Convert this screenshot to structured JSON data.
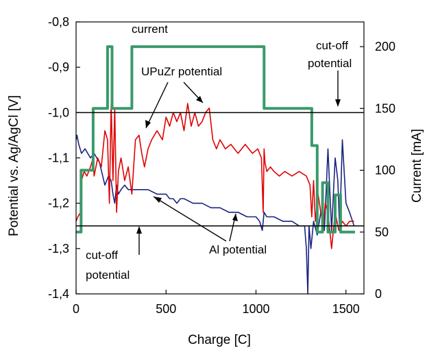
{
  "chart_data": {
    "type": "line",
    "xlabel": "Charge [C]",
    "ylabel_left": "Potential vs. Ag/AgCl [V]",
    "ylabel_right": "Current [mA]",
    "xlim": [
      0,
      1600
    ],
    "ylim_left": [
      -1.4,
      -0.8
    ],
    "ylim_right": [
      0,
      220
    ],
    "x_ticks": [
      0,
      500,
      1000,
      1500
    ],
    "x_tick_labels": [
      "0",
      "500",
      "1000",
      "1500"
    ],
    "y_left_ticks": [
      -0.8,
      -0.9,
      -1.0,
      -1.1,
      -1.2,
      -1.3,
      -1.4
    ],
    "y_left_tick_labels": [
      "-0,8",
      "-0,9",
      "-1,0",
      "-1,1",
      "-1,2",
      "-1,3",
      "-1,4"
    ],
    "y_right_ticks": [
      0,
      50,
      100,
      150,
      200
    ],
    "y_right_tick_labels": [
      "0",
      "50",
      "100",
      "150",
      "200"
    ],
    "grid": false,
    "reference_lines": [
      {
        "label": "cut-off potential upper",
        "y": -1.0
      },
      {
        "label": "cut-off potential lower",
        "y": -1.25
      }
    ],
    "annotations": {
      "current": "current",
      "upuzr": "UPuZr potential",
      "al": "Al potential",
      "cutoff_top_1": "cut-off",
      "cutoff_top_2": "potential",
      "cutoff_bottom_1": "cut-off",
      "cutoff_bottom_2": "potential"
    },
    "series": [
      {
        "axis": "right",
        "color": "#3a9a6a",
        "x": [
          0,
          28,
          28,
          95,
          95,
          175,
          175,
          200,
          200,
          235,
          235,
          310,
          310,
          1045,
          1045,
          1310,
          1310,
          1340,
          1340,
          1370,
          1370,
          1400,
          1400,
          1440,
          1440,
          1470,
          1470,
          1550
        ],
        "values": [
          50,
          50,
          100,
          100,
          150,
          150,
          200,
          200,
          150,
          150,
          150,
          150,
          200,
          200,
          150,
          150,
          120,
          120,
          50,
          50,
          90,
          90,
          50,
          50,
          80,
          80,
          50,
          50
        ]
      },
      {
        "axis": "left",
        "color": "#e00000",
        "x": [
          0,
          10,
          25,
          30,
          45,
          60,
          80,
          95,
          100,
          120,
          140,
          160,
          175,
          185,
          195,
          205,
          215,
          225,
          235,
          250,
          270,
          290,
          310,
          330,
          350,
          365,
          380,
          400,
          420,
          450,
          480,
          500,
          520,
          540,
          560,
          580,
          600,
          620,
          640,
          660,
          680,
          700,
          720,
          740,
          760,
          780,
          800,
          830,
          860,
          900,
          940,
          980,
          1010,
          1030,
          1040,
          1045,
          1050,
          1060,
          1080,
          1100,
          1130,
          1160,
          1200,
          1240,
          1280,
          1300,
          1310,
          1320,
          1330,
          1345,
          1360,
          1375,
          1385,
          1400,
          1420,
          1440,
          1460,
          1480,
          1500,
          1520,
          1545
        ],
        "values": [
          -1.24,
          -1.23,
          -1.22,
          -1.15,
          -1.13,
          -1.14,
          -1.12,
          -1.1,
          -1.14,
          -1.1,
          -1.12,
          -1.04,
          -1.06,
          -1.2,
          -0.98,
          -1.15,
          -0.99,
          -1.22,
          -1.13,
          -1.1,
          -1.15,
          -1.12,
          -1.18,
          -1.06,
          -1.05,
          -1.09,
          -1.12,
          -1.08,
          -1.06,
          -1.04,
          -1.06,
          -1.01,
          -1.03,
          -1.0,
          -1.02,
          -1.0,
          -1.04,
          -0.98,
          -1.03,
          -1.0,
          -1.03,
          -1.02,
          -1.0,
          -0.99,
          -1.06,
          -1.08,
          -1.06,
          -1.08,
          -1.07,
          -1.09,
          -1.07,
          -1.09,
          -1.08,
          -1.1,
          -1.22,
          -1.08,
          -1.11,
          -1.13,
          -1.12,
          -1.13,
          -1.14,
          -1.13,
          -1.14,
          -1.13,
          -1.14,
          -1.16,
          -1.23,
          -1.15,
          -1.24,
          -1.18,
          -1.22,
          -1.25,
          -1.2,
          -1.22,
          -1.3,
          -1.22,
          -1.26,
          -1.24,
          -1.25,
          -1.24,
          -1.24
        ]
      },
      {
        "axis": "left",
        "color": "#1a237e",
        "x": [
          0,
          5,
          15,
          30,
          50,
          80,
          100,
          130,
          160,
          180,
          195,
          205,
          215,
          225,
          235,
          250,
          270,
          290,
          310,
          350,
          400,
          450,
          500,
          520,
          540,
          560,
          580,
          600,
          650,
          700,
          750,
          800,
          850,
          900,
          950,
          1000,
          1020,
          1035,
          1045,
          1060,
          1100,
          1150,
          1200,
          1240,
          1270,
          1280,
          1288,
          1295,
          1305,
          1320,
          1340,
          1360,
          1380,
          1400,
          1420,
          1440,
          1455,
          1465,
          1480,
          1500,
          1520,
          1545
        ],
        "values": [
          -1.06,
          -1.05,
          -1.07,
          -1.09,
          -1.08,
          -1.1,
          -1.09,
          -1.11,
          -1.16,
          -1.14,
          -1.15,
          -1.18,
          -1.2,
          -1.16,
          -1.18,
          -1.17,
          -1.16,
          -1.17,
          -1.17,
          -1.17,
          -1.17,
          -1.18,
          -1.18,
          -1.19,
          -1.19,
          -1.2,
          -1.19,
          -1.19,
          -1.2,
          -1.2,
          -1.21,
          -1.21,
          -1.22,
          -1.22,
          -1.23,
          -1.23,
          -1.24,
          -1.26,
          -1.22,
          -1.23,
          -1.23,
          -1.24,
          -1.24,
          -1.25,
          -1.25,
          -1.3,
          -1.4,
          -1.25,
          -1.3,
          -1.24,
          -1.27,
          -1.22,
          -1.26,
          -1.08,
          -1.26,
          -1.1,
          -1.15,
          -1.26,
          -1.06,
          -1.2,
          -1.22,
          -1.25
        ]
      }
    ]
  }
}
